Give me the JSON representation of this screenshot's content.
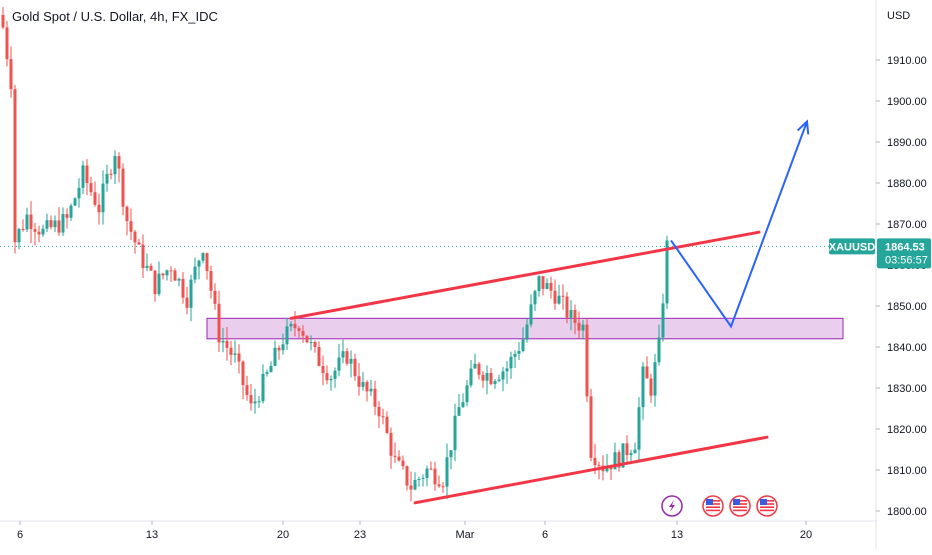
{
  "header": {
    "title": "Gold Spot / U.S. Dollar, 4h, FX_IDC"
  },
  "price_axis": {
    "currency": "USD"
  },
  "price_label": {
    "symbol": "XAUUSD",
    "price": "1864.53",
    "countdown": "03:56:57"
  },
  "colors": {
    "up": "#26a69a",
    "down": "#ef5350",
    "trendline": "#f23645",
    "projection": "#2962ff",
    "zone_fill": "#e1bee7",
    "zone_border": "#9c27b0",
    "price_line": "#26a69a",
    "grid": "#f0f3fa"
  },
  "event_icons": [
    "lightning-icon",
    "us-flag-icon",
    "us-flag-icon",
    "us-flag-icon"
  ],
  "chart_data": {
    "type": "candlestick",
    "title": "Gold Spot / U.S. Dollar, 4h, FX_IDC",
    "ylabel": "USD",
    "ylim": [
      1798,
      1927
    ],
    "y_ticks": [
      1800,
      1810,
      1820,
      1830,
      1840,
      1850,
      1860,
      1870,
      1880,
      1890,
      1900,
      1910
    ],
    "y_tick_labels": [
      "1800.00",
      "1810.00",
      "1820.00",
      "1830.00",
      "1840.00",
      "1850.00",
      "1860.00",
      "1870.00",
      "1880.00",
      "1890.00",
      "1900.00",
      "1910.00"
    ],
    "x_tick_labels": [
      "6",
      "13",
      "20",
      "23",
      "Mar",
      "6",
      "13",
      "20"
    ],
    "grid": false,
    "last_price": 1864.53,
    "ohlc_path": [
      {
        "bar": 0,
        "price": 1918
      },
      {
        "bar": 2,
        "price": 1905
      },
      {
        "bar": 3,
        "price": 1866
      },
      {
        "bar": 6,
        "price": 1872
      },
      {
        "bar": 10,
        "price": 1868
      },
      {
        "bar": 16,
        "price": 1871
      },
      {
        "bar": 20,
        "price": 1882
      },
      {
        "bar": 24,
        "price": 1874
      },
      {
        "bar": 28,
        "price": 1888
      },
      {
        "bar": 31,
        "price": 1871
      },
      {
        "bar": 34,
        "price": 1863
      },
      {
        "bar": 38,
        "price": 1855
      },
      {
        "bar": 42,
        "price": 1860
      },
      {
        "bar": 46,
        "price": 1852
      },
      {
        "bar": 50,
        "price": 1865
      },
      {
        "bar": 54,
        "price": 1843
      },
      {
        "bar": 58,
        "price": 1837
      },
      {
        "bar": 62,
        "price": 1825
      },
      {
        "bar": 66,
        "price": 1833
      },
      {
        "bar": 70,
        "price": 1842
      },
      {
        "bar": 74,
        "price": 1846
      },
      {
        "bar": 78,
        "price": 1838
      },
      {
        "bar": 82,
        "price": 1833
      },
      {
        "bar": 86,
        "price": 1838
      },
      {
        "bar": 90,
        "price": 1830
      },
      {
        "bar": 94,
        "price": 1825
      },
      {
        "bar": 98,
        "price": 1812
      },
      {
        "bar": 102,
        "price": 1806
      },
      {
        "bar": 106,
        "price": 1810
      },
      {
        "bar": 110,
        "price": 1808
      },
      {
        "bar": 114,
        "price": 1825
      },
      {
        "bar": 118,
        "price": 1835
      },
      {
        "bar": 122,
        "price": 1833
      },
      {
        "bar": 126,
        "price": 1835
      },
      {
        "bar": 130,
        "price": 1842
      },
      {
        "bar": 134,
        "price": 1856
      },
      {
        "bar": 138,
        "price": 1853
      },
      {
        "bar": 142,
        "price": 1847
      },
      {
        "bar": 145,
        "price": 1845
      },
      {
        "bar": 147,
        "price": 1815
      },
      {
        "bar": 150,
        "price": 1811
      },
      {
        "bar": 154,
        "price": 1813
      },
      {
        "bar": 158,
        "price": 1817
      },
      {
        "bar": 160,
        "price": 1833
      },
      {
        "bar": 162,
        "price": 1830
      },
      {
        "bar": 164,
        "price": 1840
      },
      {
        "bar": 166,
        "price": 1864.5
      }
    ],
    "annotations": {
      "resistance_zone": {
        "low": 1842,
        "high": 1847,
        "from_bar": 51,
        "to_bar": 210
      },
      "upper_trendline": {
        "from": {
          "bar": 72,
          "price": 1847
        },
        "to": {
          "bar": 189,
          "price": 1868
        }
      },
      "lower_trendline": {
        "from": {
          "bar": 103,
          "price": 1802
        },
        "to": {
          "bar": 191,
          "price": 1818
        }
      },
      "projection_path": [
        {
          "bar": 167,
          "price": 1866
        },
        {
          "bar": 182,
          "price": 1845
        },
        {
          "bar": 201,
          "price": 1895
        }
      ]
    }
  }
}
